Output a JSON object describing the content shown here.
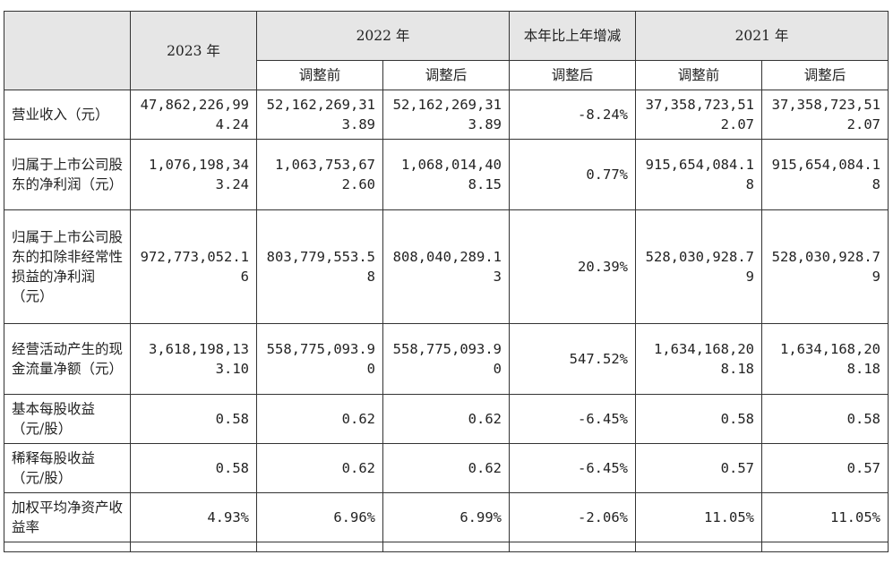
{
  "header": {
    "col_2023": "2023 年",
    "col_2022": "2022 年",
    "col_change": "本年比上年增减",
    "col_2021": "2021 年",
    "sub_before": "调整前",
    "sub_after": "调整后",
    "sub_change_after": "调整后"
  },
  "rows": [
    {
      "label": "营业收入（元）",
      "v2023": "47,862,226,994.24",
      "v2022_before": "52,162,269,313.89",
      "v2022_after": "52,162,269,313.89",
      "change": "-8.24%",
      "v2021_before": "37,358,723,512.07",
      "v2021_after": "37,358,723,512.07"
    },
    {
      "label": "归属于上市公司股东的净利润（元）",
      "v2023": "1,076,198,343.24",
      "v2022_before": "1,063,753,672.60",
      "v2022_after": "1,068,014,408.15",
      "change": "0.77%",
      "v2021_before": "915,654,084.18",
      "v2021_after": "915,654,084.18"
    },
    {
      "label": "归属于上市公司股东的扣除非经常性损益的净利润（元）",
      "v2023": "972,773,052.16",
      "v2022_before": "803,779,553.58",
      "v2022_after": "808,040,289.13",
      "change": "20.39%",
      "v2021_before": "528,030,928.79",
      "v2021_after": "528,030,928.79"
    },
    {
      "label": "经营活动产生的现金流量净额（元）",
      "v2023": "3,618,198,133.10",
      "v2022_before": "558,775,093.90",
      "v2022_after": "558,775,093.90",
      "change": "547.52%",
      "v2021_before": "1,634,168,208.18",
      "v2021_after": "1,634,168,208.18"
    },
    {
      "label": "基本每股收益（元/股）",
      "v2023": "0.58",
      "v2022_before": "0.62",
      "v2022_after": "0.62",
      "change": "-6.45%",
      "v2021_before": "0.58",
      "v2021_after": "0.58"
    },
    {
      "label": "稀释每股收益（元/股）",
      "v2023": "0.58",
      "v2022_before": "0.62",
      "v2022_after": "0.62",
      "change": "-6.45%",
      "v2021_before": "0.57",
      "v2021_after": "0.57"
    },
    {
      "label": "加权平均净资产收益率",
      "v2023": "4.93%",
      "v2022_before": "6.96%",
      "v2022_after": "6.99%",
      "change": "-2.06%",
      "v2021_before": "11.05%",
      "v2021_after": "11.05%"
    }
  ]
}
